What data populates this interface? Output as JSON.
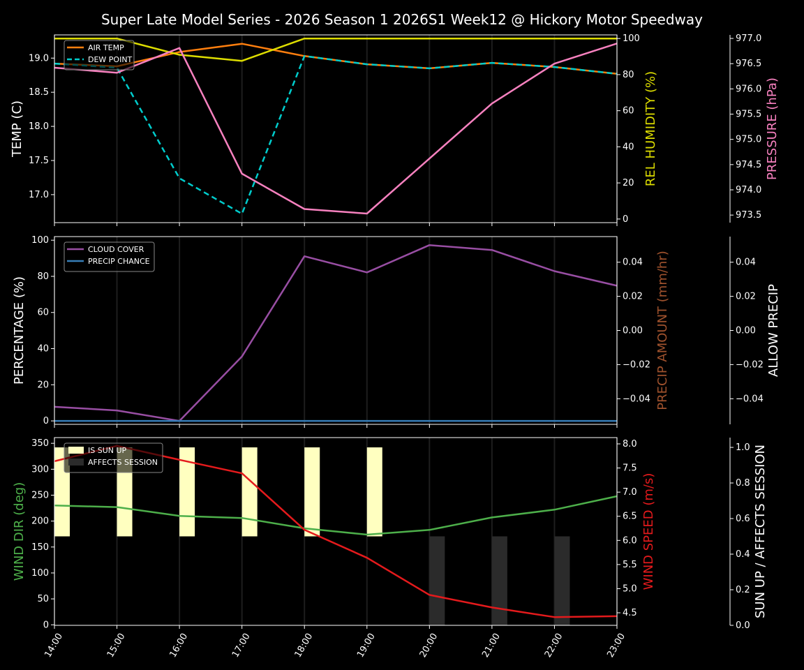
{
  "chart_data": {
    "title": "Super Late Model Series - 2026 Season 1 2026S1 Week12 @ Hickory Motor Speedway",
    "x": [
      "14:00",
      "15:00",
      "16:00",
      "17:00",
      "18:00",
      "19:00",
      "20:00",
      "21:00",
      "22:00",
      "23:00"
    ],
    "colors": {
      "air_temp": "#ff7f0e",
      "dew_point": "#00cccc",
      "humidity": "#dddd00",
      "pressure": "#f781bf",
      "cloud": "#984ea3",
      "precip_chance": "#377eb8",
      "precip_amount_label": "#a0522d",
      "wind_dir": "#4daf4a",
      "wind_speed": "#e41a1c",
      "sun_up": "#ffffc0",
      "affects": "#2b2b2b"
    },
    "panels": [
      {
        "type": "line",
        "legend": "top-left",
        "left_axis": {
          "label": "TEMP (C)",
          "ylim": [
            16.59,
            19.34
          ],
          "ticks": [
            17.0,
            17.5,
            18.0,
            18.5,
            19.0
          ],
          "tick_labels": [
            "17.0",
            "17.5",
            "18.0",
            "18.5",
            "19.0"
          ]
        },
        "right_axis": {
          "label": "REL HUMIDITY (%)",
          "ylim": [
            -2,
            102
          ],
          "ticks": [
            0,
            20,
            40,
            60,
            80,
            100
          ],
          "tick_labels": [
            "0",
            "20",
            "40",
            "60",
            "80",
            "100"
          ]
        },
        "far_axis": {
          "label": "PRESSURE (hPa)",
          "ylim": [
            973.35,
            977.07
          ],
          "ticks": [
            973.5,
            974.0,
            974.5,
            975.0,
            975.5,
            976.0,
            976.5,
            977.0
          ],
          "tick_labels": [
            "973.5",
            "974.0",
            "974.5",
            "975.0",
            "975.5",
            "976.0",
            "976.5",
            "977.0"
          ]
        },
        "series": [
          {
            "name": "AIR TEMP",
            "axis": "left",
            "style": "solid",
            "color_key": "air_temp",
            "in_legend": true,
            "values": [
              18.92,
              18.88,
              19.09,
              19.21,
              19.03,
              18.91,
              18.85,
              18.93,
              18.87,
              18.77
            ]
          },
          {
            "name": "DEW POINT",
            "axis": "left",
            "style": "dashed",
            "color_key": "dew_point",
            "in_legend": true,
            "values": [
              18.92,
              18.86,
              17.24,
              16.72,
              19.03,
              18.91,
              18.85,
              18.93,
              18.87,
              18.77
            ]
          },
          {
            "name": "REL HUMIDITY",
            "axis": "right",
            "style": "solid",
            "color_key": "humidity",
            "in_legend": false,
            "values": [
              100,
              100,
              91,
              87.6,
              100,
              100,
              100,
              100,
              100,
              100
            ]
          },
          {
            "name": "PRESSURE",
            "axis": "far",
            "style": "solid",
            "color_key": "pressure",
            "in_legend": false,
            "values": [
              976.42,
              976.32,
              976.81,
              974.32,
              973.62,
              973.53,
              974.62,
              975.71,
              976.5,
              976.9
            ]
          }
        ]
      },
      {
        "type": "line",
        "legend": "top-left",
        "left_axis": {
          "label": "PERCENTAGE (%)",
          "ylim": [
            -1.9,
            102
          ],
          "ticks": [
            0,
            20,
            40,
            60,
            80,
            100
          ],
          "tick_labels": [
            "0",
            "20",
            "40",
            "60",
            "80",
            "100"
          ]
        },
        "right_axis": {
          "label": "PRECIP AMOUNT (mm/hr)",
          "ylim": [
            -0.055,
            0.055
          ],
          "ticks": [
            -0.04,
            -0.02,
            0,
            0.02,
            0.04
          ],
          "tick_labels": [
            "−0.04",
            "−0.02",
            "0.00",
            "0.02",
            "0.04"
          ]
        },
        "far_axis": {
          "label": "ALLOW PRECIP",
          "ylim": [
            -0.055,
            0.055
          ],
          "ticks": [
            -0.04,
            -0.02,
            0,
            0.02,
            0.04
          ],
          "tick_labels": [
            "−0.04",
            "−0.02",
            "0.00",
            "0.02",
            "0.04"
          ]
        },
        "series": [
          {
            "name": "CLOUD COVER",
            "axis": "left",
            "style": "solid",
            "color_key": "cloud",
            "in_legend": true,
            "values": [
              7.8,
              5.8,
              0,
              35.7,
              91.1,
              82.2,
              97.3,
              94.6,
              82.9,
              74.8
            ]
          },
          {
            "name": "PRECIP CHANCE",
            "axis": "left",
            "style": "solid",
            "color_key": "precip_chance",
            "in_legend": true,
            "values": [
              0,
              0,
              0,
              0,
              0,
              0,
              0,
              0,
              0,
              0
            ]
          }
        ]
      },
      {
        "type": "line+bar",
        "legend": "top-left",
        "left_axis": {
          "label": "WIND DIR (deg)",
          "ylim": [
            -1,
            361
          ],
          "ticks": [
            0,
            50,
            100,
            150,
            200,
            250,
            300,
            350
          ],
          "tick_labels": [
            "0",
            "50",
            "100",
            "150",
            "200",
            "250",
            "300",
            "350"
          ]
        },
        "right_axis": {
          "label": "WIND SPEED (m/s)",
          "ylim": [
            4.24,
            8.13
          ],
          "ticks": [
            4.5,
            5.0,
            5.5,
            6.0,
            6.5,
            7.0,
            7.5,
            8.0
          ],
          "tick_labels": [
            "4.5",
            "5.0",
            "5.5",
            "6.0",
            "6.5",
            "7.0",
            "7.5",
            "8.0"
          ]
        },
        "far_axis": {
          "label": "SUN UP / AFFECTS SESSION",
          "ylim": [
            0,
            1.055
          ],
          "ticks": [
            0,
            0.2,
            0.4,
            0.6,
            0.8,
            1.0
          ],
          "tick_labels": [
            "0.0",
            "0.2",
            "0.4",
            "0.6",
            "0.8",
            "1.0"
          ]
        },
        "bars": [
          {
            "name": "IS SUN UP",
            "color_key": "sun_up",
            "base": 0.5,
            "values": [
              0.5,
              0.5,
              0.5,
              0.5,
              0.5,
              0.5,
              0,
              0,
              0,
              0
            ]
          },
          {
            "name": "AFFECTS SESSION",
            "color_key": "affects",
            "base": 0,
            "values": [
              0,
              0,
              0,
              0,
              0,
              0,
              0.5,
              0.5,
              0.5,
              0
            ]
          }
        ],
        "series": [
          {
            "name": "WIND DIR",
            "axis": "left",
            "style": "solid",
            "color_key": "wind_dir",
            "in_legend": false,
            "values": [
              230,
              227,
              210,
              206,
              186,
              174,
              183,
              207,
              222,
              248
            ]
          },
          {
            "name": "WIND SPEED",
            "axis": "right",
            "style": "solid",
            "color_key": "wind_speed",
            "in_legend": false,
            "values": [
              7.64,
              7.96,
              7.67,
              7.39,
              6.22,
              5.64,
              4.87,
              4.61,
              4.41,
              4.43
            ]
          }
        ]
      }
    ]
  }
}
